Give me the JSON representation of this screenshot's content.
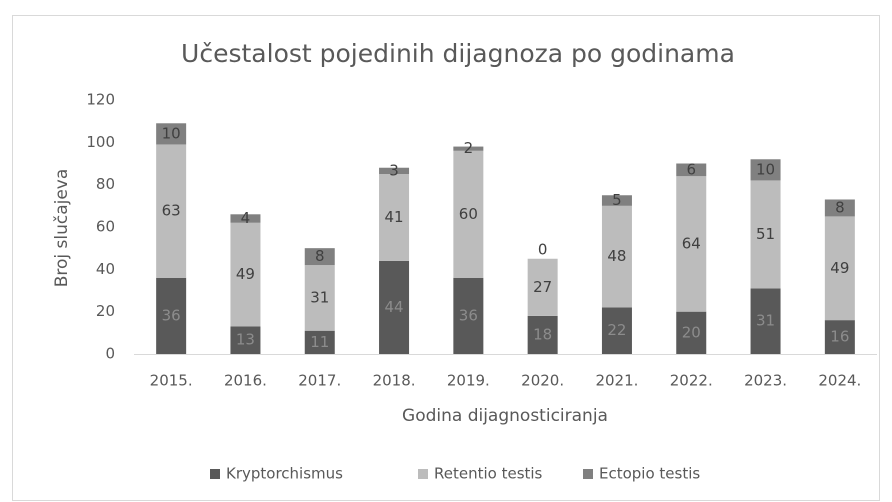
{
  "chart_data": {
    "type": "stacked_bar",
    "title": "Učestalost pojedinih dijagnoza po godinama",
    "x_label": "Godina dijagnosticiranja",
    "y_label": "Broj slučajeva",
    "categories": [
      "2015.",
      "2016.",
      "2017.",
      "2018.",
      "2019.",
      "2020.",
      "2021.",
      "2022.",
      "2023.",
      "2024."
    ],
    "series": [
      {
        "name": "Kryptorchismus",
        "color": "#595959",
        "values": [
          36,
          13,
          11,
          44,
          36,
          18,
          22,
          20,
          31,
          16
        ]
      },
      {
        "name": "Retentio testis",
        "color": "#bcbcbc",
        "values": [
          63,
          49,
          31,
          41,
          60,
          27,
          48,
          64,
          51,
          49
        ]
      },
      {
        "name": "Ectopio testis",
        "color": "#808080",
        "values": [
          10,
          4,
          8,
          3,
          2,
          0,
          5,
          6,
          10,
          8
        ]
      }
    ],
    "ylim": [
      0,
      120
    ],
    "yticks": [
      0,
      20,
      40,
      60,
      80,
      100,
      120
    ],
    "grid": false,
    "legend": "bottom"
  }
}
